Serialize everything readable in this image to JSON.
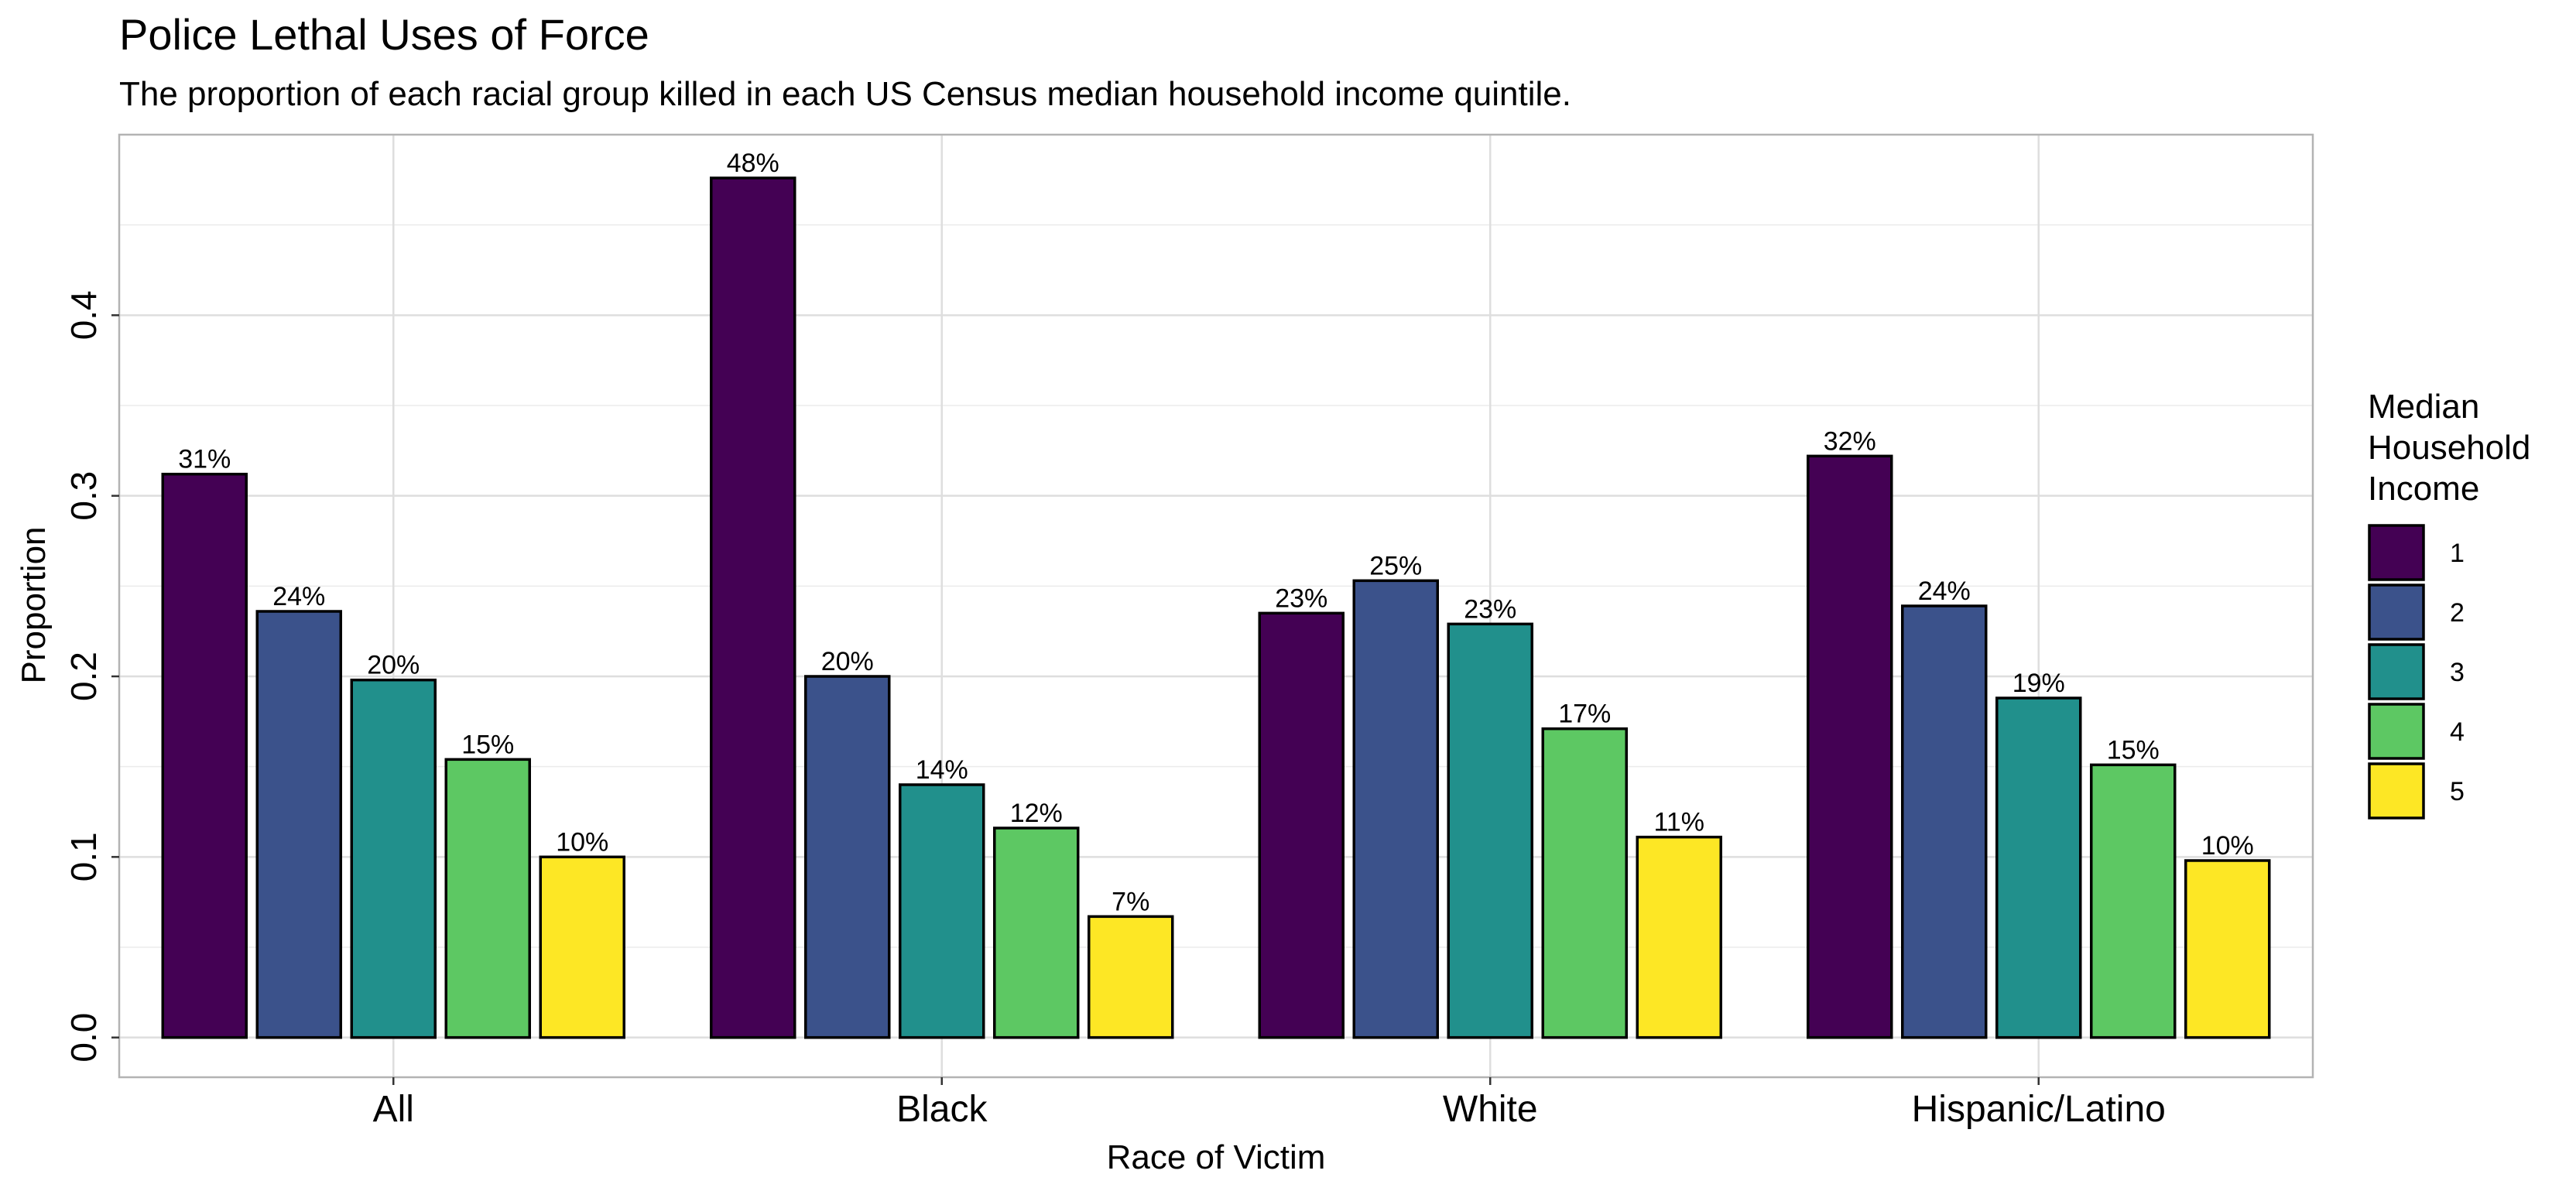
{
  "chart_data": {
    "type": "bar",
    "title": "Police Lethal Uses of Force",
    "subtitle": "The proportion of each racial group killed in each US Census median household income quintile.",
    "xlabel": "Race of Victim",
    "ylabel": "Proportion",
    "categories": [
      "All",
      "Black",
      "White",
      "Hispanic/Latino"
    ],
    "ylim": [
      -0.022,
      0.5
    ],
    "y_ticks": [
      "0.0",
      "0.1",
      "0.2",
      "0.3",
      "0.4"
    ],
    "y_tick_values": [
      0,
      0.1,
      0.2,
      0.3,
      0.4
    ],
    "legend": {
      "title": "Median Household Income",
      "title_lines": [
        "Median",
        "Household",
        "Income"
      ],
      "position": "right"
    },
    "grid": true,
    "series": [
      {
        "name": "1",
        "color": "#440154",
        "values": [
          0.312,
          0.476,
          0.235,
          0.322
        ],
        "labels": [
          "31%",
          "48%",
          "23%",
          "32%"
        ]
      },
      {
        "name": "2",
        "color": "#3B528B",
        "values": [
          0.236,
          0.2,
          0.253,
          0.239
        ],
        "labels": [
          "24%",
          "20%",
          "25%",
          "24%"
        ]
      },
      {
        "name": "3",
        "color": "#21908C",
        "values": [
          0.198,
          0.14,
          0.229,
          0.188
        ],
        "labels": [
          "20%",
          "14%",
          "23%",
          "19%"
        ]
      },
      {
        "name": "4",
        "color": "#5DC863",
        "values": [
          0.154,
          0.116,
          0.171,
          0.151
        ],
        "labels": [
          "15%",
          "12%",
          "17%",
          "15%"
        ]
      },
      {
        "name": "5",
        "color": "#FDE725",
        "values": [
          0.1,
          0.067,
          0.111,
          0.098
        ],
        "labels": [
          "10%",
          "7%",
          "11%",
          "10%"
        ]
      }
    ]
  }
}
